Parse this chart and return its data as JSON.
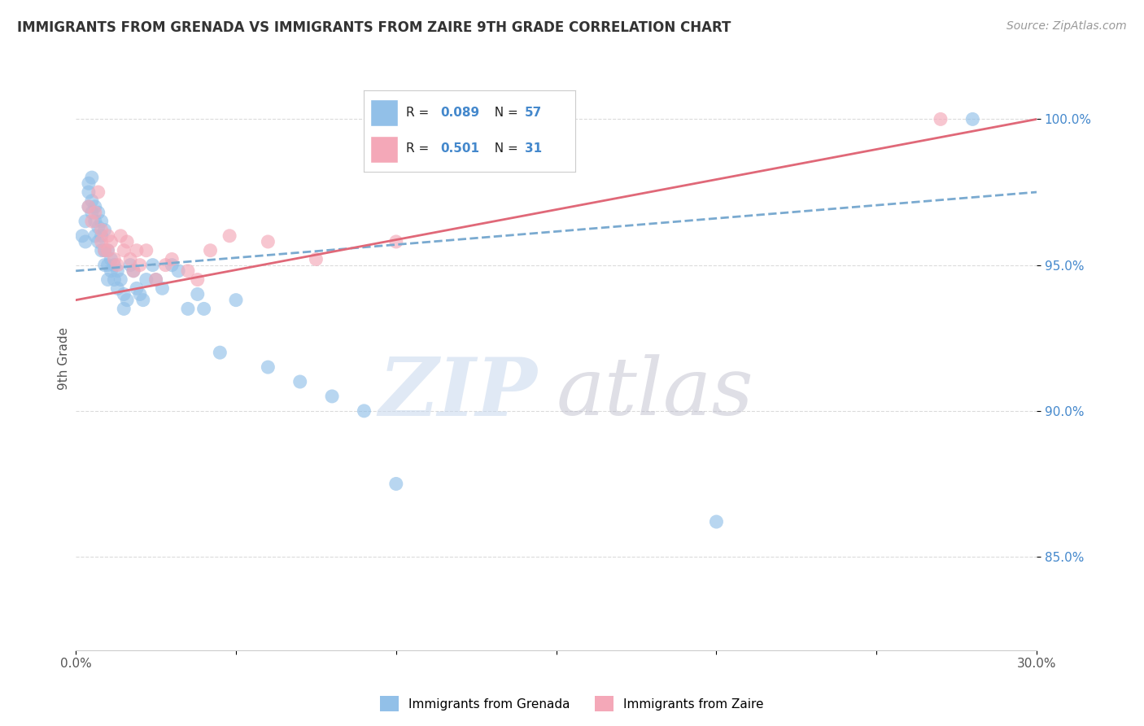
{
  "title": "IMMIGRANTS FROM GRENADA VS IMMIGRANTS FROM ZAIRE 9TH GRADE CORRELATION CHART",
  "source": "Source: ZipAtlas.com",
  "ylabel": "9th Grade",
  "y_tick_labels": [
    "100.0%",
    "95.0%",
    "90.0%",
    "85.0%"
  ],
  "y_tick_values": [
    1.0,
    0.95,
    0.9,
    0.85
  ],
  "x_min": 0.0,
  "x_max": 0.3,
  "y_min": 0.818,
  "y_max": 1.018,
  "legend_r1": "R = 0.089",
  "legend_n1": "N = 57",
  "legend_r2": "R = 0.501",
  "legend_n2": "N = 31",
  "color_blue": "#92C0E8",
  "color_pink": "#F4A8B8",
  "color_blue_line": "#7AAAD0",
  "color_pink_line": "#E06878",
  "color_text_blue": "#4488CC",
  "watermark_zip": "ZIP",
  "watermark_atlas": "atlas",
  "legend_label_blue": "Immigrants from Grenada",
  "legend_label_pink": "Immigrants from Zaire",
  "blue_x": [
    0.002,
    0.003,
    0.003,
    0.004,
    0.004,
    0.004,
    0.005,
    0.005,
    0.005,
    0.006,
    0.006,
    0.006,
    0.007,
    0.007,
    0.007,
    0.008,
    0.008,
    0.008,
    0.009,
    0.009,
    0.009,
    0.01,
    0.01,
    0.01,
    0.011,
    0.011,
    0.012,
    0.012,
    0.013,
    0.013,
    0.014,
    0.015,
    0.015,
    0.016,
    0.017,
    0.018,
    0.019,
    0.02,
    0.021,
    0.022,
    0.024,
    0.025,
    0.027,
    0.03,
    0.032,
    0.035,
    0.038,
    0.04,
    0.045,
    0.05,
    0.06,
    0.07,
    0.08,
    0.09,
    0.1,
    0.2,
    0.28
  ],
  "blue_y": [
    0.96,
    0.965,
    0.958,
    0.975,
    0.97,
    0.978,
    0.972,
    0.968,
    0.98,
    0.97,
    0.965,
    0.96,
    0.968,
    0.963,
    0.958,
    0.965,
    0.96,
    0.955,
    0.962,
    0.955,
    0.95,
    0.955,
    0.95,
    0.945,
    0.952,
    0.948,
    0.95,
    0.945,
    0.948,
    0.942,
    0.945,
    0.94,
    0.935,
    0.938,
    0.95,
    0.948,
    0.942,
    0.94,
    0.938,
    0.945,
    0.95,
    0.945,
    0.942,
    0.95,
    0.948,
    0.935,
    0.94,
    0.935,
    0.92,
    0.938,
    0.915,
    0.91,
    0.905,
    0.9,
    0.875,
    0.862,
    1.0
  ],
  "pink_x": [
    0.004,
    0.005,
    0.006,
    0.007,
    0.008,
    0.008,
    0.009,
    0.01,
    0.01,
    0.011,
    0.012,
    0.013,
    0.014,
    0.015,
    0.016,
    0.017,
    0.018,
    0.019,
    0.02,
    0.022,
    0.025,
    0.028,
    0.03,
    0.035,
    0.038,
    0.042,
    0.048,
    0.06,
    0.075,
    0.1,
    0.27
  ],
  "pink_y": [
    0.97,
    0.965,
    0.968,
    0.975,
    0.962,
    0.958,
    0.955,
    0.96,
    0.955,
    0.958,
    0.952,
    0.95,
    0.96,
    0.955,
    0.958,
    0.952,
    0.948,
    0.955,
    0.95,
    0.955,
    0.945,
    0.95,
    0.952,
    0.948,
    0.945,
    0.955,
    0.96,
    0.958,
    0.952,
    0.958,
    1.0
  ]
}
